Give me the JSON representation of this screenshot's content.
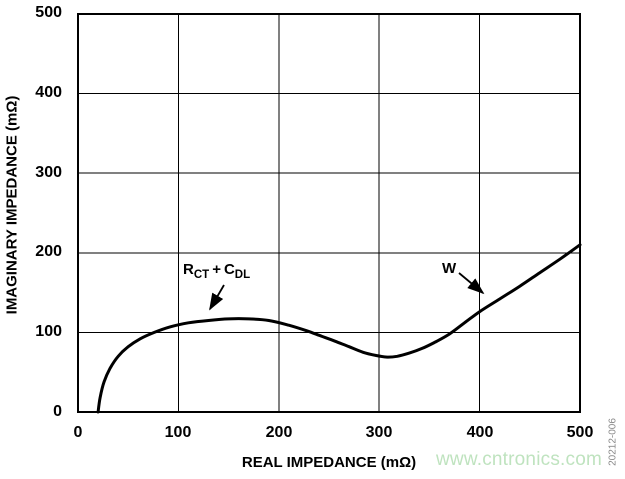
{
  "figure": {
    "watermark": "www.cntronics.com",
    "watermark_color": "#bfe3bf",
    "figure_code": "20212-006",
    "figure_code_color": "#8a8a8a",
    "line_color": "#000000",
    "background_color": "#ffffff"
  },
  "chart_data": {
    "type": "line",
    "title": "",
    "xlabel": "REAL IMPEDANCE (mΩ)",
    "ylabel": "IMAGINARY IMPEDANCE (mΩ)",
    "xlim": [
      0,
      500
    ],
    "ylim": [
      0,
      500
    ],
    "x_ticks": [
      0,
      100,
      200,
      300,
      400,
      500
    ],
    "y_ticks": [
      0,
      100,
      200,
      300,
      400,
      500
    ],
    "grid": true,
    "legend_position": "none",
    "series": [
      {
        "name": "nyquist-impedance-curve",
        "color": "#000000",
        "points": [
          [
            20,
            0
          ],
          [
            22,
            18
          ],
          [
            26,
            38
          ],
          [
            32,
            55
          ],
          [
            40,
            70
          ],
          [
            50,
            82
          ],
          [
            62,
            92
          ],
          [
            76,
            100
          ],
          [
            92,
            107
          ],
          [
            110,
            112
          ],
          [
            130,
            115
          ],
          [
            150,
            117
          ],
          [
            170,
            117
          ],
          [
            190,
            115
          ],
          [
            210,
            109
          ],
          [
            228,
            102
          ],
          [
            243,
            95
          ],
          [
            256,
            89
          ],
          [
            270,
            82
          ],
          [
            284,
            75
          ],
          [
            297,
            71
          ],
          [
            308,
            69
          ],
          [
            318,
            70
          ],
          [
            330,
            74
          ],
          [
            343,
            80
          ],
          [
            356,
            88
          ],
          [
            370,
            98
          ],
          [
            385,
            112
          ],
          [
            400,
            126
          ],
          [
            420,
            142
          ],
          [
            440,
            158
          ],
          [
            460,
            175
          ],
          [
            480,
            192
          ],
          [
            500,
            210
          ]
        ]
      }
    ],
    "annotations": [
      {
        "id": "rct-cdl",
        "r": "R",
        "r_sub": "CT",
        "plus": "+",
        "c": "C",
        "c_sub": "DL",
        "points_to": {
          "x": 130,
          "y": 120
        }
      },
      {
        "id": "warburg",
        "label": "W",
        "points_to": {
          "x": 408,
          "y": 137
        }
      }
    ]
  }
}
